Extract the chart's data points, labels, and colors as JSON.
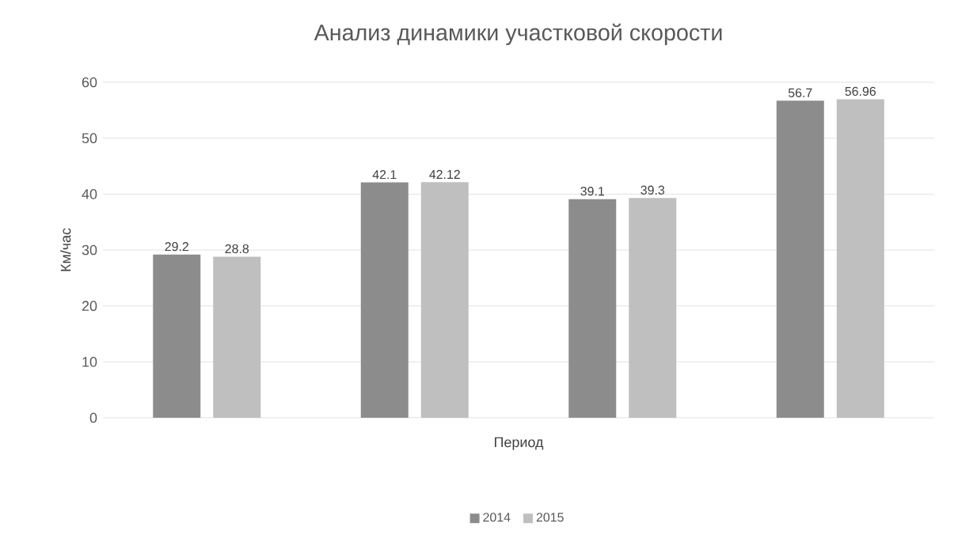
{
  "chart_data": {
    "type": "bar",
    "title": "Анализ динамики участковой скорости",
    "xlabel": "Период",
    "ylabel": "Км/час",
    "categories": [
      null,
      null,
      null,
      null
    ],
    "series": [
      {
        "name": "2014",
        "color": "#8c8c8c",
        "values": [
          29.2,
          42.1,
          39.1,
          56.7
        ]
      },
      {
        "name": "2015",
        "color": "#bfbfbf",
        "values": [
          28.8,
          42.12,
          39.3,
          56.96
        ]
      }
    ],
    "ylim": [
      0,
      60
    ],
    "yticks": [
      0,
      10,
      20,
      30,
      40,
      50,
      60
    ],
    "grid": "y",
    "legend": "bottom",
    "data_labels": true
  }
}
